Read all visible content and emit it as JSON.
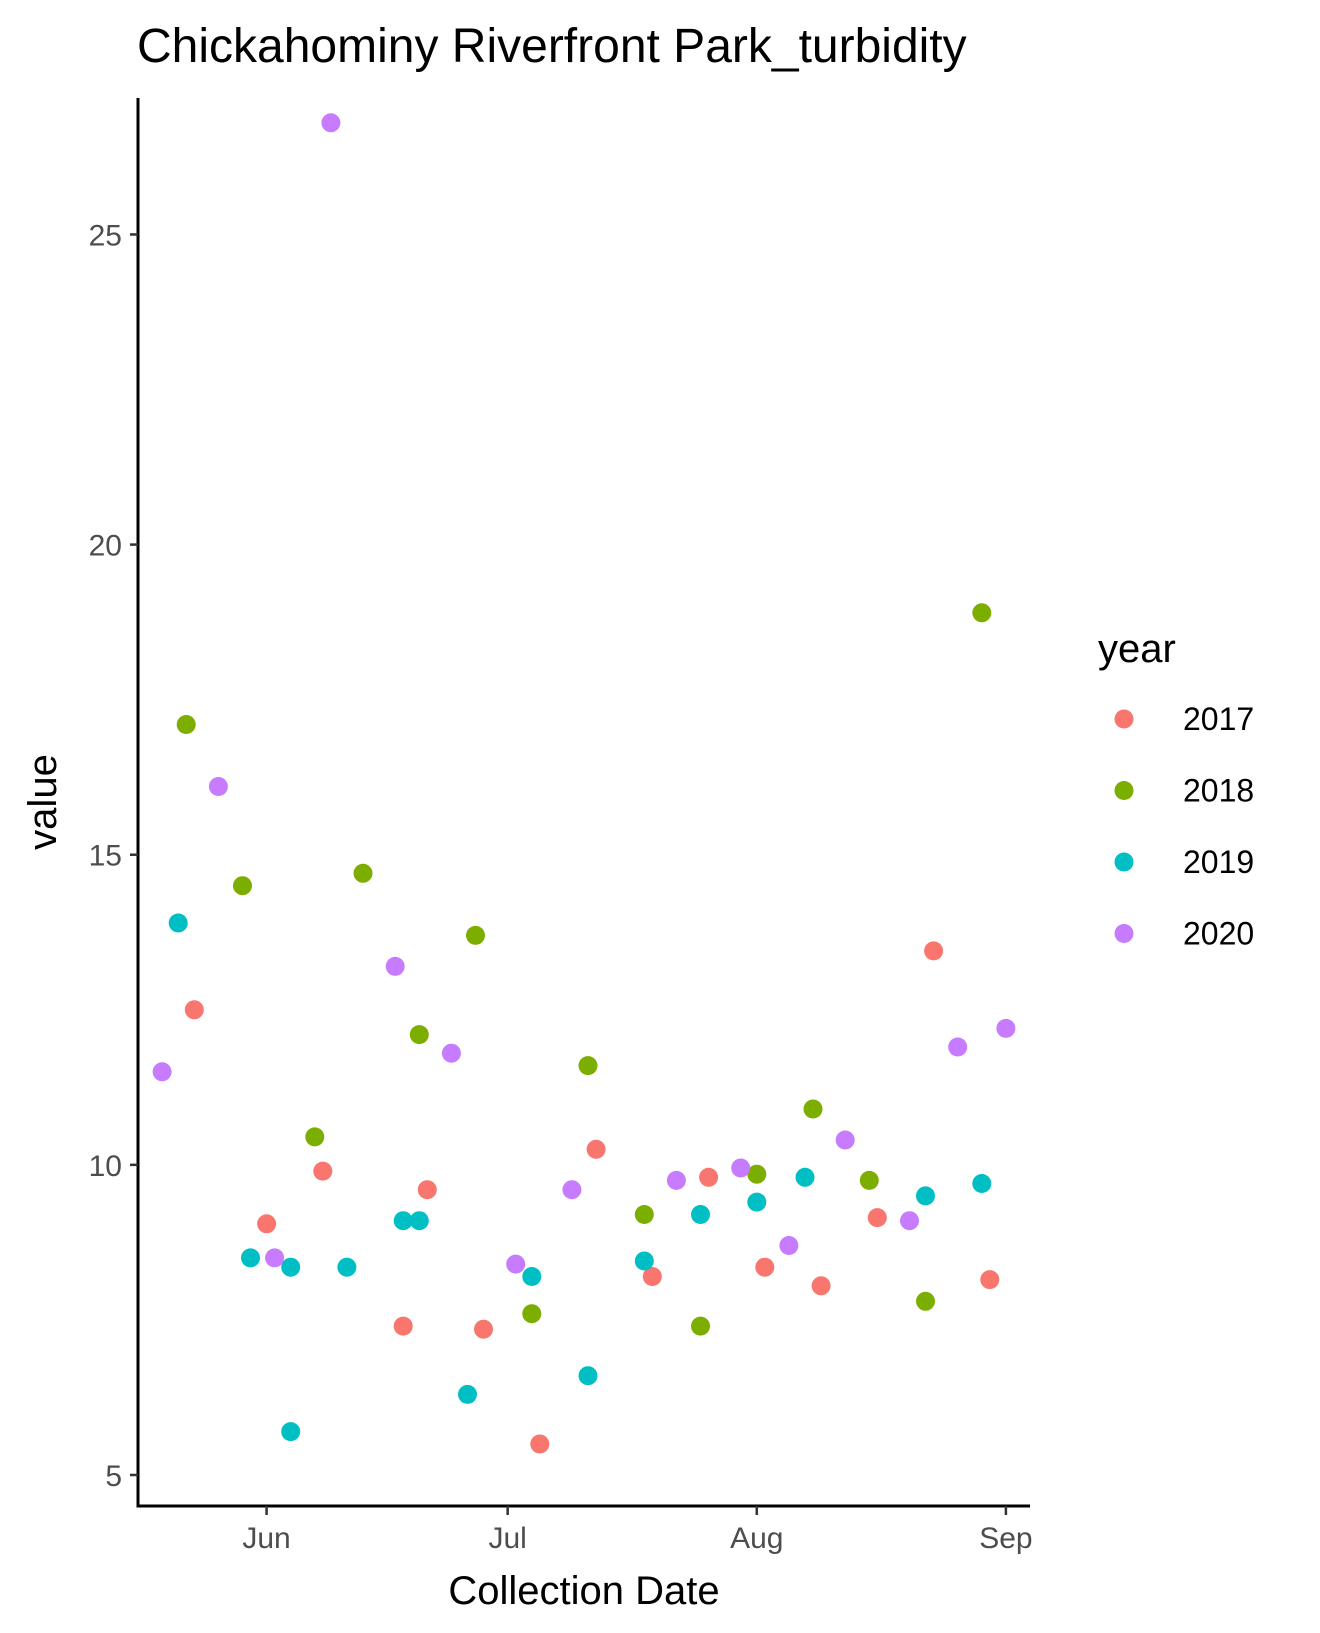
{
  "chart_data": {
    "type": "scatter",
    "title": "Chickahominy Riverfront Park_turbidity",
    "xlabel": "Collection Date",
    "ylabel": "value",
    "x_axis": {
      "type": "date",
      "range": [
        "2000-05-16",
        "2000-09-04"
      ],
      "ticks": [
        {
          "date": "2000-06-01",
          "label": "Jun"
        },
        {
          "date": "2000-07-01",
          "label": "Jul"
        },
        {
          "date": "2000-08-01",
          "label": "Aug"
        },
        {
          "date": "2000-09-01",
          "label": "Sep"
        }
      ]
    },
    "y_axis": {
      "range": [
        4.5,
        27.2
      ],
      "ticks": [
        5,
        10,
        15,
        20,
        25
      ]
    },
    "grid": false,
    "legend": {
      "title": "year",
      "position": "right"
    },
    "series": [
      {
        "name": "2017",
        "color": "#F8766D",
        "points": [
          {
            "x": "2000-05-23",
            "y": 12.5
          },
          {
            "x": "2000-06-01",
            "y": 9.05
          },
          {
            "x": "2000-06-08",
            "y": 9.9
          },
          {
            "x": "2000-06-18",
            "y": 7.4
          },
          {
            "x": "2000-06-21",
            "y": 9.6
          },
          {
            "x": "2000-06-28",
            "y": 7.35
          },
          {
            "x": "2000-07-05",
            "y": 5.5
          },
          {
            "x": "2000-07-12",
            "y": 10.25
          },
          {
            "x": "2000-07-19",
            "y": 8.2
          },
          {
            "x": "2000-07-26",
            "y": 9.8
          },
          {
            "x": "2000-08-02",
            "y": 8.35
          },
          {
            "x": "2000-08-09",
            "y": 8.05
          },
          {
            "x": "2000-08-16",
            "y": 9.15
          },
          {
            "x": "2000-08-23",
            "y": 13.45
          },
          {
            "x": "2000-08-30",
            "y": 8.15
          }
        ]
      },
      {
        "name": "2018",
        "color": "#7CAE00",
        "points": [
          {
            "x": "2000-05-22",
            "y": 17.1
          },
          {
            "x": "2000-05-29",
            "y": 14.5
          },
          {
            "x": "2000-06-07",
            "y": 10.45
          },
          {
            "x": "2000-06-13",
            "y": 14.7
          },
          {
            "x": "2000-06-20",
            "y": 12.1
          },
          {
            "x": "2000-06-27",
            "y": 13.7
          },
          {
            "x": "2000-07-04",
            "y": 7.6
          },
          {
            "x": "2000-07-11",
            "y": 11.6
          },
          {
            "x": "2000-07-18",
            "y": 9.2
          },
          {
            "x": "2000-07-25",
            "y": 7.4
          },
          {
            "x": "2000-08-01",
            "y": 9.85
          },
          {
            "x": "2000-08-08",
            "y": 10.9
          },
          {
            "x": "2000-08-15",
            "y": 9.75
          },
          {
            "x": "2000-08-22",
            "y": 7.8
          },
          {
            "x": "2000-08-29",
            "y": 18.9
          }
        ]
      },
      {
        "name": "2019",
        "color": "#00BFC4",
        "points": [
          {
            "x": "2000-05-21",
            "y": 13.9
          },
          {
            "x": "2000-05-30",
            "y": 8.5
          },
          {
            "x": "2000-06-04",
            "y": 8.35
          },
          {
            "x": "2000-06-04",
            "y": 5.7
          },
          {
            "x": "2000-06-11",
            "y": 8.35
          },
          {
            "x": "2000-06-18",
            "y": 9.1
          },
          {
            "x": "2000-06-20",
            "y": 9.1
          },
          {
            "x": "2000-06-26",
            "y": 6.3
          },
          {
            "x": "2000-07-04",
            "y": 8.2
          },
          {
            "x": "2000-07-11",
            "y": 6.6
          },
          {
            "x": "2000-07-18",
            "y": 8.45
          },
          {
            "x": "2000-07-25",
            "y": 9.2
          },
          {
            "x": "2000-08-01",
            "y": 9.4
          },
          {
            "x": "2000-08-07",
            "y": 9.8
          },
          {
            "x": "2000-08-22",
            "y": 9.5
          },
          {
            "x": "2000-08-29",
            "y": 9.7
          }
        ]
      },
      {
        "name": "2020",
        "color": "#C77CFF",
        "points": [
          {
            "x": "2000-05-19",
            "y": 11.5
          },
          {
            "x": "2000-05-26",
            "y": 16.1
          },
          {
            "x": "2000-06-02",
            "y": 8.5
          },
          {
            "x": "2000-06-09",
            "y": 26.8
          },
          {
            "x": "2000-06-17",
            "y": 13.2
          },
          {
            "x": "2000-06-24",
            "y": 11.8
          },
          {
            "x": "2000-07-02",
            "y": 8.4
          },
          {
            "x": "2000-07-09",
            "y": 9.6
          },
          {
            "x": "2000-07-22",
            "y": 9.75
          },
          {
            "x": "2000-07-30",
            "y": 9.95
          },
          {
            "x": "2000-08-05",
            "y": 8.7
          },
          {
            "x": "2000-08-12",
            "y": 10.4
          },
          {
            "x": "2000-08-20",
            "y": 9.1
          },
          {
            "x": "2000-08-26",
            "y": 11.9
          },
          {
            "x": "2000-09-01",
            "y": 12.2
          }
        ]
      }
    ]
  }
}
